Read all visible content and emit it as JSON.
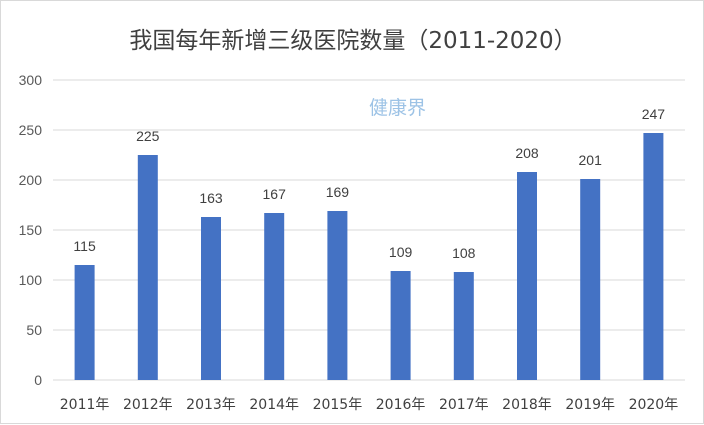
{
  "watermark": "健康界",
  "colors": {
    "bar": "#4472c4",
    "grid": "#d9d9d9",
    "watermark": "#9dc3e6"
  },
  "chart_data": {
    "type": "bar",
    "title": "我国每年新增三级医院数量（2011-2020）",
    "xlabel": "",
    "ylabel": "",
    "categories": [
      "2011年",
      "2012年",
      "2013年",
      "2014年",
      "2015年",
      "2016年",
      "2017年",
      "2018年",
      "2019年",
      "2020年"
    ],
    "values": [
      115,
      225,
      163,
      167,
      169,
      109,
      108,
      208,
      201,
      247
    ],
    "ylim": [
      0,
      300
    ],
    "yticks": [
      0,
      50,
      100,
      150,
      200,
      250,
      300
    ],
    "grid": true,
    "legend": "none",
    "data_labels": true
  }
}
